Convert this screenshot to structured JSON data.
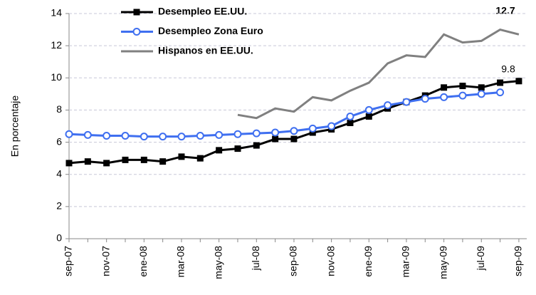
{
  "chart_data": {
    "type": "line",
    "y_label": "En porcentaje",
    "categories": [
      "sep-07",
      null,
      "nov-07",
      null,
      "ene-08",
      null,
      "mar-08",
      null,
      "may-08",
      null,
      "jul-08",
      null,
      "sep-08",
      null,
      "nov-08",
      null,
      "ene-09",
      null,
      "mar-09",
      null,
      "may-09",
      null,
      "jul-09",
      null,
      "sep-09"
    ],
    "series": [
      {
        "name": "Desempleo EE.UU.",
        "color": "#000000",
        "marker": "square",
        "values": [
          4.7,
          4.8,
          4.7,
          4.9,
          4.9,
          4.8,
          5.1,
          5.0,
          5.5,
          5.6,
          5.8,
          6.2,
          6.2,
          6.6,
          6.8,
          7.2,
          7.6,
          8.1,
          8.5,
          8.9,
          9.4,
          9.5,
          9.4,
          9.7,
          9.8
        ]
      },
      {
        "name": "Desempleo Zona Euro",
        "color": "#3f6ff0",
        "marker": "circle",
        "values": [
          6.5,
          6.45,
          6.4,
          6.4,
          6.35,
          6.35,
          6.35,
          6.4,
          6.45,
          6.5,
          6.55,
          6.6,
          6.7,
          6.85,
          7.0,
          7.6,
          8.0,
          8.3,
          8.5,
          8.7,
          8.8,
          8.9,
          9.0,
          9.1,
          null
        ]
      },
      {
        "name": "Hispanos en EE.UU.",
        "color": "#808080",
        "marker": "none",
        "values": [
          null,
          null,
          null,
          null,
          null,
          null,
          null,
          null,
          null,
          7.7,
          7.5,
          8.1,
          7.9,
          8.8,
          8.6,
          9.2,
          9.7,
          10.9,
          11.4,
          11.3,
          12.7,
          12.2,
          12.3,
          13.0,
          12.7
        ]
      }
    ],
    "annotations": [
      {
        "text": "12.7",
        "color": "#808080"
      },
      {
        "text": "9.8",
        "color": "#000000"
      }
    ],
    "ylim": [
      0,
      14
    ],
    "yticks": [
      0,
      2,
      4,
      6,
      8,
      10,
      12,
      14
    ],
    "grid": true
  }
}
